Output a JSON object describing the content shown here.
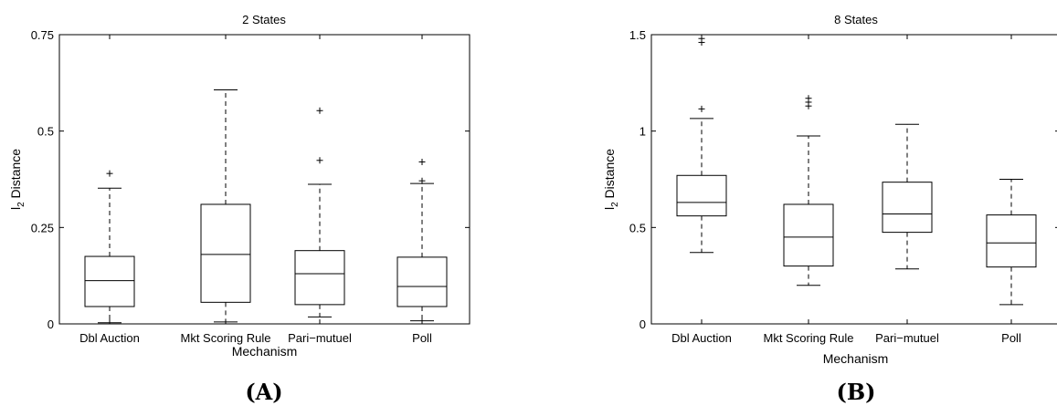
{
  "chart_data": [
    {
      "type": "box",
      "title": "2 States",
      "xlabel": "Mechanism",
      "ylabel_main": "l",
      "ylabel_sub": "2",
      "ylabel_rest": " Distance",
      "ylim": [
        0,
        0.75
      ],
      "yticks": [
        0,
        0.25,
        0.5,
        0.75
      ],
      "ytick_labels": [
        "0",
        "0.25",
        "0.5",
        "0.75"
      ],
      "categories": [
        "Dbl Auction",
        "Mkt Scoring Rule",
        "Pari−mutuel",
        "Poll"
      ],
      "boxes": [
        {
          "whisker_low": 0.003,
          "q1": 0.045,
          "median": 0.112,
          "q3": 0.175,
          "whisker_high": 0.352,
          "outliers": [
            0.39
          ]
        },
        {
          "whisker_low": 0.005,
          "q1": 0.056,
          "median": 0.18,
          "q3": 0.31,
          "whisker_high": 0.607,
          "outliers": []
        },
        {
          "whisker_low": 0.018,
          "q1": 0.05,
          "median": 0.13,
          "q3": 0.19,
          "whisker_high": 0.362,
          "outliers": [
            0.424,
            0.553
          ]
        },
        {
          "whisker_low": 0.008,
          "q1": 0.045,
          "median": 0.097,
          "q3": 0.173,
          "whisker_high": 0.364,
          "outliers": [
            0.371,
            0.42
          ]
        }
      ],
      "panel_label": "(A)"
    },
    {
      "type": "box",
      "title": "8 States",
      "xlabel": "Mechanism",
      "ylabel_main": "l",
      "ylabel_sub": "2",
      "ylabel_rest": " Distance",
      "ylim": [
        0,
        1.5
      ],
      "yticks": [
        0,
        0.5,
        1,
        1.5
      ],
      "ytick_labels": [
        "0",
        "0.5",
        "1",
        "1.5"
      ],
      "categories": [
        "Dbl Auction",
        "Mkt Scoring Rule",
        "Pari−mutuel",
        "Poll"
      ],
      "boxes": [
        {
          "whisker_low": 0.37,
          "q1": 0.56,
          "median": 0.63,
          "q3": 0.77,
          "whisker_high": 1.065,
          "outliers": [
            1.115,
            1.46,
            1.48
          ]
        },
        {
          "whisker_low": 0.2,
          "q1": 0.3,
          "median": 0.45,
          "q3": 0.62,
          "whisker_high": 0.975,
          "outliers": [
            1.13,
            1.15,
            1.17
          ]
        },
        {
          "whisker_low": 0.285,
          "q1": 0.475,
          "median": 0.57,
          "q3": 0.735,
          "whisker_high": 1.035,
          "outliers": []
        },
        {
          "whisker_low": 0.1,
          "q1": 0.295,
          "median": 0.42,
          "q3": 0.565,
          "whisker_high": 0.75,
          "outliers": []
        }
      ],
      "panel_label": "(B)"
    }
  ]
}
